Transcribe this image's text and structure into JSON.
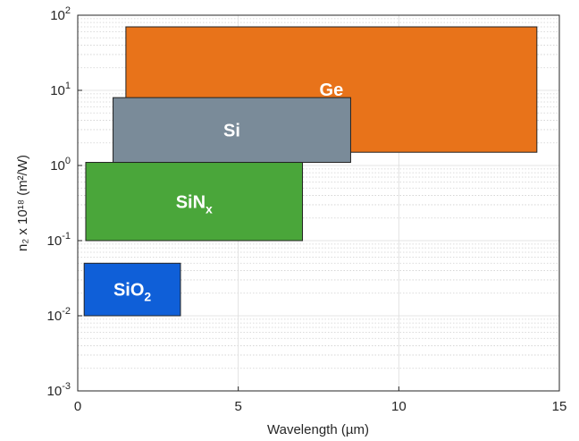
{
  "chart_data": {
    "type": "bar",
    "orientation": "horizontal-range",
    "xlabel": "Wavelength (µm)",
    "ylabel": "n₂ x 10¹⁸ (m²/W)",
    "xlim": [
      0,
      15
    ],
    "ylim": [
      0.001,
      100
    ],
    "yscale": "log",
    "grid": true,
    "xticks": [
      "0",
      "5",
      "10",
      "15"
    ],
    "yticks": [
      {
        "base": "10",
        "exp": "-3",
        "value": 0.001
      },
      {
        "base": "10",
        "exp": "-2",
        "value": 0.01
      },
      {
        "base": "10",
        "exp": "-1",
        "value": 0.1
      },
      {
        "base": "10",
        "exp": "0",
        "value": 1
      },
      {
        "base": "10",
        "exp": "1",
        "value": 10
      },
      {
        "base": "10",
        "exp": "2",
        "value": 100
      }
    ],
    "materials": [
      {
        "label": "Ge",
        "label_main": "Ge",
        "label_sub": "",
        "x": [
          1.5,
          14.3
        ],
        "y": [
          1.5,
          70
        ],
        "color": "#e8731a"
      },
      {
        "label": "Si",
        "label_main": "Si",
        "label_sub": "",
        "x": [
          1.1,
          8.5
        ],
        "y": [
          1.1,
          8
        ],
        "color": "#7a8b99"
      },
      {
        "label": "SiNx",
        "label_main": "SiN",
        "label_sub": "x",
        "x": [
          0.25,
          7.0
        ],
        "y": [
          0.1,
          1.1
        ],
        "color": "#4aa63a"
      },
      {
        "label": "SiO2",
        "label_main": "SiO",
        "label_sub": "2",
        "x": [
          0.2,
          3.2
        ],
        "y": [
          0.01,
          0.05
        ],
        "color": "#0f5fd8"
      }
    ]
  }
}
